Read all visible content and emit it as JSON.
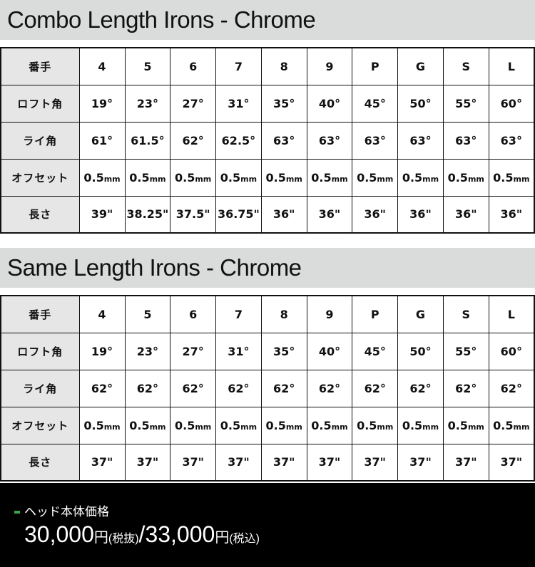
{
  "sections": [
    {
      "title": "Combo Length Irons - Chrome",
      "rows": [
        {
          "label": "番手",
          "cells": [
            "4",
            "5",
            "6",
            "7",
            "8",
            "9",
            "P",
            "G",
            "S",
            "L"
          ]
        },
        {
          "label": "ロフト角",
          "cells": [
            "19°",
            "23°",
            "27°",
            "31°",
            "35°",
            "40°",
            "45°",
            "50°",
            "55°",
            "60°"
          ]
        },
        {
          "label": "ライ角",
          "cells": [
            "61°",
            "61.5°",
            "62°",
            "62.5°",
            "63°",
            "63°",
            "63°",
            "63°",
            "63°",
            "63°"
          ]
        },
        {
          "label": "オフセット",
          "cells": [
            "0.5",
            "0.5",
            "0.5",
            "0.5",
            "0.5",
            "0.5",
            "0.5",
            "0.5",
            "0.5",
            "0.5"
          ],
          "unit": "mm"
        },
        {
          "label": "長さ",
          "cells": [
            "39\"",
            "38.25\"",
            "37.5\"",
            "36.75\"",
            "36\"",
            "36\"",
            "36\"",
            "36\"",
            "36\"",
            "36\""
          ]
        }
      ]
    },
    {
      "title": "Same Length Irons - Chrome",
      "rows": [
        {
          "label": "番手",
          "cells": [
            "4",
            "5",
            "6",
            "7",
            "8",
            "9",
            "P",
            "G",
            "S",
            "L"
          ]
        },
        {
          "label": "ロフト角",
          "cells": [
            "19°",
            "23°",
            "27°",
            "31°",
            "35°",
            "40°",
            "45°",
            "50°",
            "55°",
            "60°"
          ]
        },
        {
          "label": "ライ角",
          "cells": [
            "62°",
            "62°",
            "62°",
            "62°",
            "62°",
            "62°",
            "62°",
            "62°",
            "62°",
            "62°"
          ]
        },
        {
          "label": "オフセット",
          "cells": [
            "0.5",
            "0.5",
            "0.5",
            "0.5",
            "0.5",
            "0.5",
            "0.5",
            "0.5",
            "0.5",
            "0.5"
          ],
          "unit": "mm"
        },
        {
          "label": "長さ",
          "cells": [
            "37\"",
            "37\"",
            "37\"",
            "37\"",
            "37\"",
            "37\"",
            "37\"",
            "37\"",
            "37\"",
            "37\""
          ]
        }
      ]
    }
  ],
  "price": {
    "label": "ヘッド本体価格",
    "excl": "30,000",
    "yen": "円",
    "excl_note": "(税抜)",
    "sep": "/",
    "incl": "33,000",
    "incl_note": "(税込)",
    "accent": "#3aa54a"
  }
}
